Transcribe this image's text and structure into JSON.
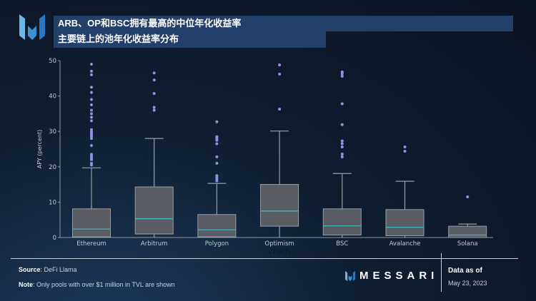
{
  "header": {
    "title": "ARB、OP和BSC拥有最高的中位年化收益率",
    "subtitle": "主要链上的池年化收益率分布"
  },
  "footer": {
    "source_label": "Source",
    "source_value": ": DeFi Llama",
    "note_label": "Note",
    "note_value": ": Only pools with over $1 million in TVL are shown",
    "brand": "MESSARI",
    "data_as_of_label": "Data as of",
    "data_as_of_date": "May 23, 2023"
  },
  "colors": {
    "box_fill": "#595d63",
    "box_edge": "#9a9ea4",
    "median": "#3fb8c0",
    "outlier": "#8c94e6",
    "accent": "#22406a"
  },
  "chart_data": {
    "type": "box",
    "xlabel": "chain",
    "ylabel": "APY (percent)",
    "ylim": [
      0,
      50
    ],
    "yticks": [
      "0",
      "10",
      "20",
      "30",
      "40",
      "50"
    ],
    "grid": false,
    "categories": [
      "Ethereum",
      "Arbitrum",
      "Polygon",
      "Optimism",
      "BSC",
      "Avalanche",
      "Solana"
    ],
    "series": [
      {
        "category": "Ethereum",
        "whisker_low": 0,
        "q1": 0.2,
        "median": 2.4,
        "q3": 8.1,
        "whisker_high": 19.7,
        "outliers": [
          49,
          47,
          46,
          42.5,
          41,
          39,
          37.5,
          36,
          35,
          34,
          33,
          30.5,
          30,
          29.5,
          29,
          28.5,
          28,
          26,
          23.5,
          23,
          22.5,
          22,
          21,
          20.5
        ]
      },
      {
        "category": "Arbitrum",
        "whisker_low": 0,
        "q1": 1.0,
        "median": 5.3,
        "q3": 14.3,
        "whisker_high": 28,
        "outliers": [
          46.5,
          44.5,
          40.7,
          36.8,
          36
        ]
      },
      {
        "category": "Polygon",
        "whisker_low": 0,
        "q1": 0.2,
        "median": 2.2,
        "q3": 6.5,
        "whisker_high": 15.3,
        "outliers": [
          32.7,
          28.5,
          28,
          27.5,
          26.5,
          22.8,
          21,
          17.5,
          17,
          16.5,
          16
        ]
      },
      {
        "category": "Optimism",
        "whisker_low": 0,
        "q1": 3.2,
        "median": 7.5,
        "q3": 15,
        "whisker_high": 30.1,
        "outliers": [
          48.8,
          46.2,
          36.3
        ]
      },
      {
        "category": "BSC",
        "whisker_low": 0,
        "q1": 0.7,
        "median": 3.3,
        "q3": 8.1,
        "whisker_high": 18.1,
        "outliers": [
          46.8,
          46.3,
          45.6,
          37.8,
          31.9,
          27.3,
          26.5,
          25.6,
          23.6,
          22.8
        ]
      },
      {
        "category": "Avalanche",
        "whisker_low": 0,
        "q1": 0.5,
        "median": 2.9,
        "q3": 7.9,
        "whisker_high": 15.9,
        "outliers": [
          25.6,
          24.4
        ]
      },
      {
        "category": "Solana",
        "whisker_low": 0,
        "q1": 0,
        "median": 0.7,
        "q3": 3.2,
        "whisker_high": 3.8,
        "outliers": [
          11.5
        ]
      }
    ]
  }
}
